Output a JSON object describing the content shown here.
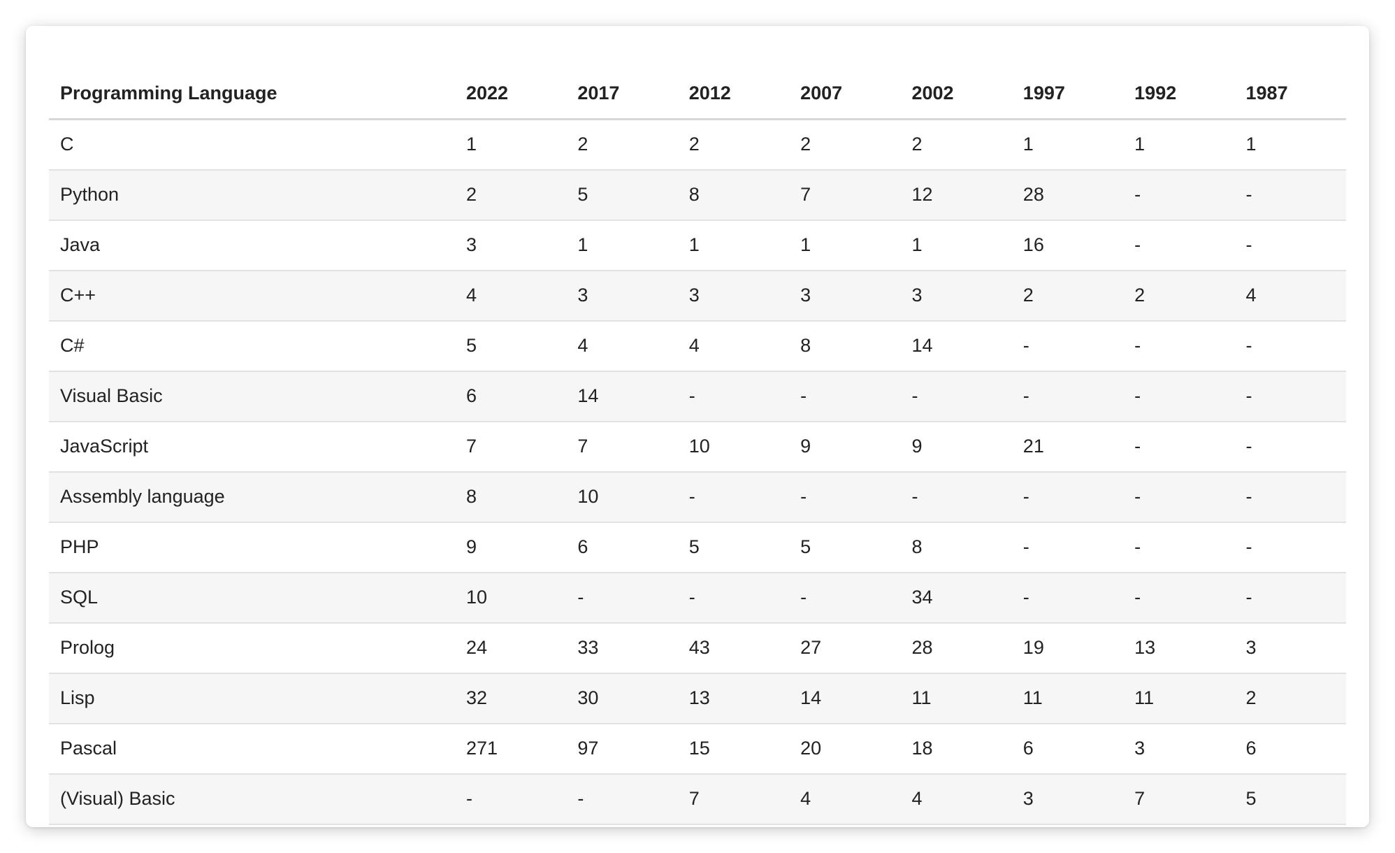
{
  "table": {
    "headers": [
      "Programming Language",
      "2022",
      "2017",
      "2012",
      "2007",
      "2002",
      "1997",
      "1992",
      "1987"
    ],
    "rows": [
      [
        "C",
        "1",
        "2",
        "2",
        "2",
        "2",
        "1",
        "1",
        "1"
      ],
      [
        "Python",
        "2",
        "5",
        "8",
        "7",
        "12",
        "28",
        "-",
        "-"
      ],
      [
        "Java",
        "3",
        "1",
        "1",
        "1",
        "1",
        "16",
        "-",
        "-"
      ],
      [
        "C++",
        "4",
        "3",
        "3",
        "3",
        "3",
        "2",
        "2",
        "4"
      ],
      [
        "C#",
        "5",
        "4",
        "4",
        "8",
        "14",
        "-",
        "-",
        "-"
      ],
      [
        "Visual Basic",
        "6",
        "14",
        "-",
        "-",
        "-",
        "-",
        "-",
        "-"
      ],
      [
        "JavaScript",
        "7",
        "7",
        "10",
        "9",
        "9",
        "21",
        "-",
        "-"
      ],
      [
        "Assembly language",
        "8",
        "10",
        "-",
        "-",
        "-",
        "-",
        "-",
        "-"
      ],
      [
        "PHP",
        "9",
        "6",
        "5",
        "5",
        "8",
        "-",
        "-",
        "-"
      ],
      [
        "SQL",
        "10",
        "-",
        "-",
        "-",
        "34",
        "-",
        "-",
        "-"
      ],
      [
        "Prolog",
        "24",
        "33",
        "43",
        "27",
        "28",
        "19",
        "13",
        "3"
      ],
      [
        "Lisp",
        "32",
        "30",
        "13",
        "14",
        "11",
        "11",
        "11",
        "2"
      ],
      [
        "Pascal",
        "271",
        "97",
        "15",
        "20",
        "18",
        "6",
        "3",
        "6"
      ],
      [
        "(Visual) Basic",
        "-",
        "-",
        "7",
        "4",
        "4",
        "3",
        "7",
        "5"
      ]
    ]
  }
}
